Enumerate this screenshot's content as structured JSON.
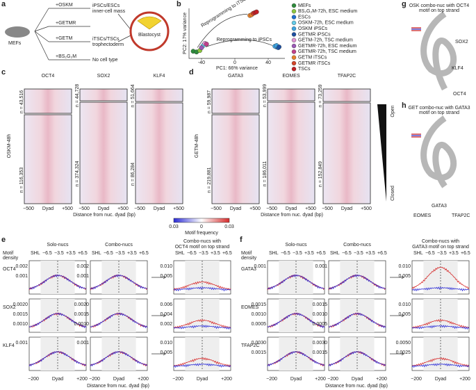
{
  "a": {
    "label": "a",
    "start": "MEFs",
    "arrows": [
      "+OSKM",
      "+GETMR",
      "+GETM",
      "+BS₂G₂M"
    ],
    "outcomes": [
      "iPSCs/ESCs",
      "inner-cell mass",
      "iTSCs/TSCs",
      "trophectoderm",
      "No cell type"
    ],
    "blastocyst": "Blastocyst"
  },
  "b": {
    "label": "b",
    "chart_data": {
      "type": "scatter",
      "xlabel": "PC1: 66% variance",
      "ylabel": "PC2: 17% variance",
      "xlim": [
        -55,
        60
      ],
      "ylim": [
        -30,
        40
      ],
      "xticks": [
        -40,
        0,
        40
      ],
      "annotations": [
        "Reprogramming to iTSCs",
        "Reprogramming to iPSCs"
      ],
      "series": [
        {
          "name": "MEFs",
          "color": "#2e8b3c",
          "x": [
            -50,
            -46
          ],
          "values": [
            -20,
            -21
          ]
        },
        {
          "name": "BS₂G₂M-72h, ESC medium",
          "color": "#8cc63f",
          "x": [
            -42
          ],
          "values": [
            -19
          ]
        },
        {
          "name": "ESCs",
          "color": "#1f6fd0",
          "x": [
            50,
            52
          ],
          "values": [
            -14,
            -15
          ]
        },
        {
          "name": "OSKM-72h, ESC medium",
          "color": "#63cbe8",
          "x": [
            -38
          ],
          "values": [
            -12
          ]
        },
        {
          "name": "OSKM iPSCs",
          "color": "#3ea3e0",
          "x": [
            48,
            50
          ],
          "values": [
            -13,
            -12
          ]
        },
        {
          "name": "GETMR iPSCs",
          "color": "#1d4fa0",
          "x": [
            53
          ],
          "values": [
            -14
          ]
        },
        {
          "name": "GETM-72h, TSC medium",
          "color": "#e093d3",
          "x": [
            -36
          ],
          "values": [
            -9
          ]
        },
        {
          "name": "GETMR-72h, ESC medium",
          "color": "#9b59b6",
          "x": [
            -40
          ],
          "values": [
            -15
          ]
        },
        {
          "name": "GETMR-72h, TSC medium",
          "color": "#c2408a",
          "x": [
            -34
          ],
          "values": [
            -10
          ]
        },
        {
          "name": "GETM iTSCs",
          "color": "#e8822a",
          "x": [
            18,
            20
          ],
          "values": [
            30,
            31
          ]
        },
        {
          "name": "GETMR iTSCs",
          "color": "#d4452a",
          "x": [
            22
          ],
          "values": [
            33
          ]
        },
        {
          "name": "TSCs",
          "color": "#c21f25",
          "x": [
            24,
            26
          ],
          "values": [
            34,
            35
          ]
        }
      ]
    }
  },
  "c": {
    "label": "c",
    "condition": "OSKM-48h",
    "motifs": [
      {
        "name": "OCT4",
        "n_open": "n = 43,516",
        "n_closed": "n = 116,353"
      },
      {
        "name": "SOX2",
        "n_open": "n = 44,728",
        "n_closed": "n = 374,324"
      },
      {
        "name": "KLF4",
        "n_open": "n = 51,664",
        "n_closed": "n = 86,284"
      }
    ],
    "xticks": [
      "−500",
      "Dyad",
      "+500"
    ],
    "xlabel": "Distance from nuc. dyad (bp)"
  },
  "d": {
    "label": "d",
    "condition": "GETM-48h",
    "motifs": [
      {
        "name": "GATA3",
        "n_open": "n = 59,987",
        "n_closed": "n = 219,881"
      },
      {
        "name": "EOMES",
        "n_open": "n = 53,999",
        "n_closed": "n = 186,011"
      },
      {
        "name": "TFAP2C",
        "n_open": "n = 73,259",
        "n_closed": "n = 152,849"
      }
    ],
    "xticks": [
      "−500",
      "Dyad",
      "+500"
    ],
    "xlabel": "Distance from nuc. dyad (bp)",
    "open": "Open",
    "closed": "Closed",
    "colorbar": {
      "ticks": [
        "0.03",
        "0",
        "0.03"
      ],
      "label": "Motif frequency"
    }
  },
  "e": {
    "label": "e",
    "ylabel": [
      "Motif",
      "density"
    ],
    "columns": [
      "Solo-nucs",
      "Combo-nucs"
    ],
    "column3": [
      "Combo-nucs with",
      "OCT4 motif on top strand"
    ],
    "shl": [
      "SHL",
      "−6.5",
      "−3.5",
      "+3.5",
      "+6.5"
    ],
    "rows": [
      {
        "name": "OCT4",
        "yticks": [
          "0.002",
          "0.001"
        ],
        "yticks3": [
          "0.010",
          "0.005"
        ]
      },
      {
        "name": "SOX2",
        "yticks": [
          "0.0020",
          "0.0015",
          "0.0010"
        ],
        "yticks3": [
          "0.006",
          "0.004",
          "0.002"
        ]
      },
      {
        "name": "KLF4",
        "yticks": [
          "0.001"
        ],
        "yticks3": [
          "0.010",
          "0.005"
        ]
      }
    ],
    "xticks": [
      "−200",
      "Dyad",
      "+200"
    ],
    "xlabel": "Distance from nuc. dyad (bp)"
  },
  "f": {
    "label": "f",
    "ylabel": [
      "Motif",
      "density"
    ],
    "columns": [
      "Solo-nucs",
      "Combo-nucs"
    ],
    "column3": [
      "Combo-nucs with",
      "GATA3 motif on top strand"
    ],
    "shl": [
      "SHL",
      "−6.5",
      "−3.5",
      "+3.5",
      "+6.5"
    ],
    "rows": [
      {
        "name": "GATA3",
        "yticks": [
          "0.001"
        ],
        "yticks3": [
          "0.010",
          "0.005"
        ]
      },
      {
        "name": "EOMES",
        "yticks": [
          "0.0015",
          "0.0010",
          "0.0005"
        ],
        "yticks3": [
          "0.010",
          "0.005"
        ]
      },
      {
        "name": "TFAP2C",
        "yticks": [
          "0.0030",
          "0.0015"
        ],
        "yticks3": [
          "0.0050",
          "0.0025"
        ]
      }
    ],
    "xticks": [
      "−200",
      "Dyad",
      "+200"
    ],
    "xlabel": "Distance from nuc. dyad (bp)"
  },
  "g": {
    "label": "g",
    "title": [
      "OSK combo-nuc with OCT4",
      "motif on top strand"
    ],
    "factors": [
      "SOX2",
      "KLF4",
      "OCT4"
    ]
  },
  "h": {
    "label": "h",
    "title": [
      "GET combo-nuc with GATA3",
      "motif on top strand"
    ],
    "factors": [
      "GATA3",
      "EOMES",
      "TFAP2C"
    ]
  }
}
